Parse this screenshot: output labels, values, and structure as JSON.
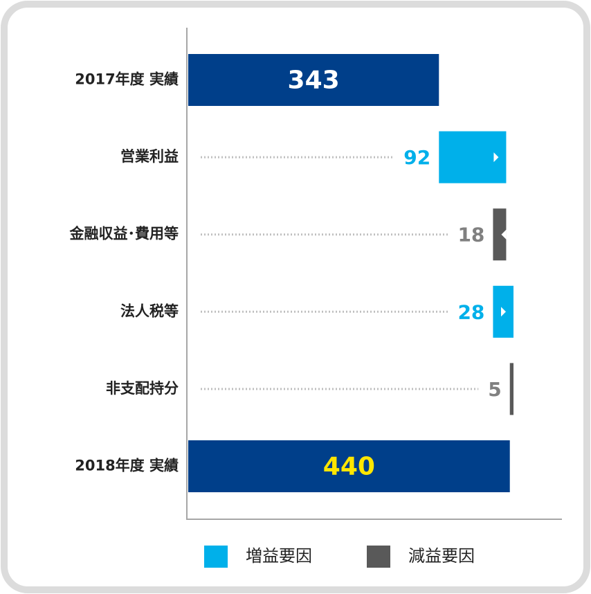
{
  "chart_data": {
    "type": "waterfall",
    "categories": [
      "2017年度 実績",
      "営業利益",
      "金融収益･費用等",
      "法人税等",
      "非支配持分",
      "2018年度 実績"
    ],
    "values": [
      343,
      92,
      -18,
      28,
      -5,
      440
    ],
    "value_labels": [
      "343",
      "92",
      "18",
      "28",
      "5",
      "440"
    ],
    "total_color": "#003f8a",
    "total_label_colors": [
      "#ffffff",
      "#ffe600"
    ],
    "series": [
      {
        "name": "増益要因",
        "color": "#00b0ea"
      },
      {
        "name": "減益要因",
        "color": "#595959"
      }
    ]
  }
}
